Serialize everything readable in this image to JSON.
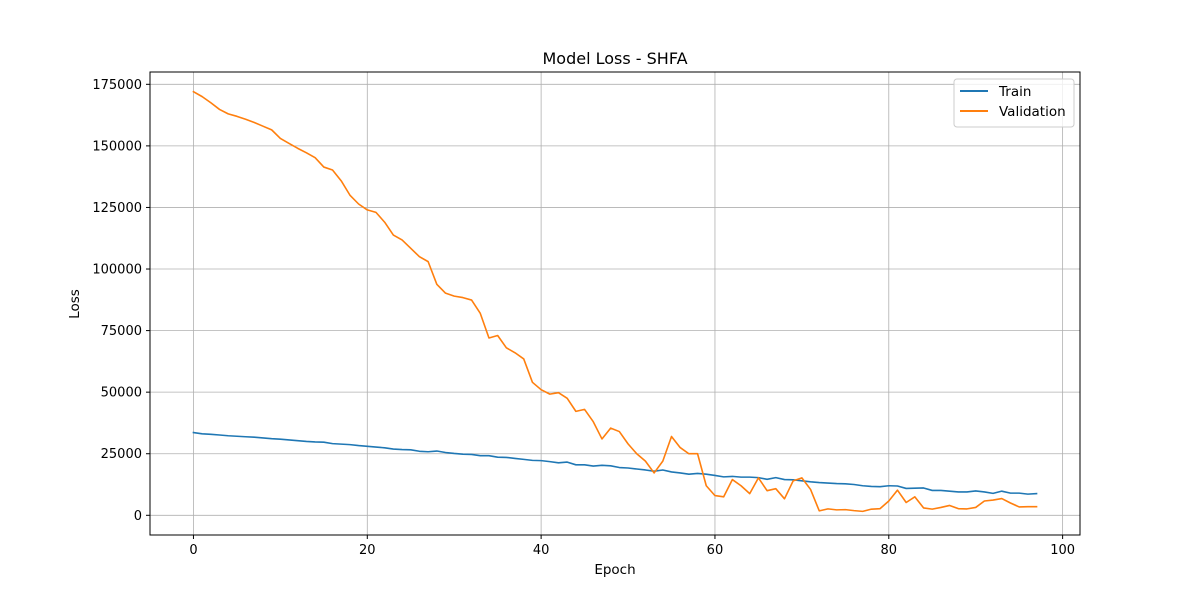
{
  "chart_data": {
    "type": "line",
    "title": "Model Loss - SHFA",
    "xlabel": "Epoch",
    "ylabel": "Loss",
    "xlim": [
      -5,
      102
    ],
    "ylim": [
      -8000,
      180000
    ],
    "xticks": [
      0,
      20,
      40,
      60,
      80,
      100
    ],
    "xtick_labels": [
      "0",
      "20",
      "40",
      "60",
      "80",
      "100"
    ],
    "yticks": [
      0,
      25000,
      50000,
      75000,
      100000,
      125000,
      150000,
      175000
    ],
    "ytick_labels": [
      "0",
      "25000",
      "50000",
      "75000",
      "100000",
      "125000",
      "150000",
      "175000"
    ],
    "grid": true,
    "legend_position": "top-right",
    "series": [
      {
        "name": "Train",
        "color": "#1f77b4",
        "values": [
          33600,
          33100,
          32900,
          32600,
          32300,
          32100,
          31900,
          31700,
          31400,
          31100,
          30900,
          30600,
          30300,
          30000,
          29800,
          29700,
          29100,
          28900,
          28700,
          28300,
          28000,
          27700,
          27400,
          26900,
          26700,
          26600,
          26000,
          25800,
          26100,
          25500,
          25100,
          24800,
          24700,
          24200,
          24200,
          23600,
          23500,
          23100,
          22700,
          22300,
          22200,
          21800,
          21300,
          21600,
          20500,
          20500,
          20000,
          20300,
          20100,
          19400,
          19200,
          18800,
          18400,
          17900,
          18400,
          17600,
          17200,
          16700,
          17000,
          16700,
          16200,
          15600,
          15800,
          15500,
          15500,
          15300,
          14600,
          15300,
          14500,
          14400,
          14000,
          13600,
          13300,
          13100,
          12900,
          12800,
          12500,
          12000,
          11700,
          11600,
          12000,
          11900,
          10900,
          11000,
          11100,
          10100,
          10100,
          9800,
          9500,
          9500,
          9900,
          9500,
          8900,
          9800,
          9000,
          9000,
          8600,
          8800
        ]
      },
      {
        "name": "Validation",
        "color": "#ff7f0e",
        "values": [
          172000,
          170000,
          167500,
          164800,
          163000,
          162000,
          160800,
          159500,
          158000,
          156500,
          153000,
          151000,
          149000,
          147200,
          145200,
          141400,
          140200,
          135800,
          130000,
          126400,
          124000,
          123000,
          119000,
          113800,
          111800,
          108400,
          105000,
          103000,
          93800,
          90200,
          89000,
          88400,
          87400,
          82000,
          72000,
          73000,
          68000,
          66000,
          63500,
          54000,
          51000,
          49200,
          49800,
          47500,
          42200,
          43000,
          38000,
          31000,
          35400,
          34000,
          29000,
          25000,
          22000,
          17200,
          22000,
          32000,
          27500,
          25000,
          25000,
          12000,
          8000,
          7500,
          14500,
          12000,
          8800,
          15200,
          10000,
          10800,
          6700,
          14000,
          15200,
          10500,
          1800,
          2600,
          2200,
          2300,
          1900,
          1600,
          2500,
          2700,
          5800,
          10200,
          5200,
          7500,
          3000,
          2500,
          3200,
          4000,
          2700,
          2600,
          3200,
          5800,
          6200,
          6800,
          5000,
          3400,
          3500,
          3500
        ]
      }
    ]
  }
}
